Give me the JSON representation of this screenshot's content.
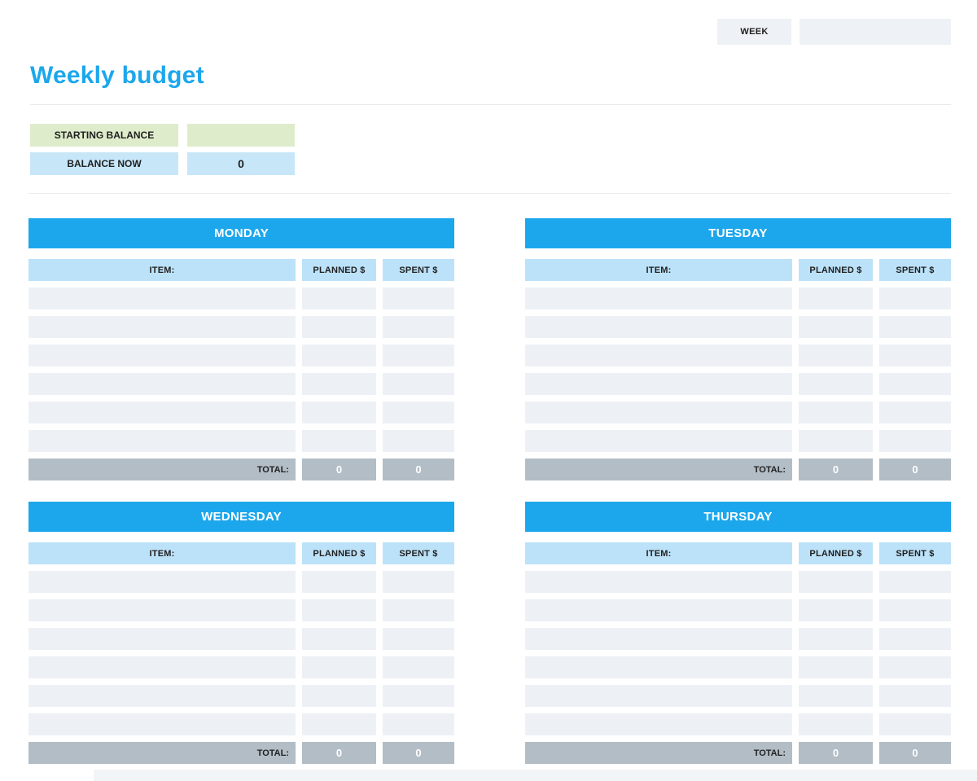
{
  "page": {
    "title": "Weekly budget"
  },
  "week": {
    "label": "WEEK",
    "value": ""
  },
  "balance": {
    "starting": {
      "label": "STARTING BALANCE",
      "value": ""
    },
    "now": {
      "label": "BALANCE NOW",
      "value": "0"
    }
  },
  "table_headers": {
    "item": "ITEM:",
    "planned": "PLANNED $",
    "spent": "SPENT $",
    "total": "TOTAL:"
  },
  "table_layout": {
    "empty_rows_per_table": 6
  },
  "days": [
    {
      "name": "MONDAY",
      "total_planned": "0",
      "total_spent": "0"
    },
    {
      "name": "TUESDAY",
      "total_planned": "0",
      "total_spent": "0"
    },
    {
      "name": "WEDNESDAY",
      "total_planned": "0",
      "total_spent": "0"
    },
    {
      "name": "THURSDAY",
      "total_planned": "0",
      "total_spent": "0"
    }
  ],
  "colors": {
    "accent_blue": "#1CA7EC",
    "column_header_blue": "#BCE2F9",
    "balance_now_blue": "#C7E7F9",
    "starting_balance_green": "#DFECCB",
    "empty_row_gray": "#EDF1F5",
    "total_row_gray": "#B2BDC6",
    "week_box_gray": "#EEF1F5"
  }
}
